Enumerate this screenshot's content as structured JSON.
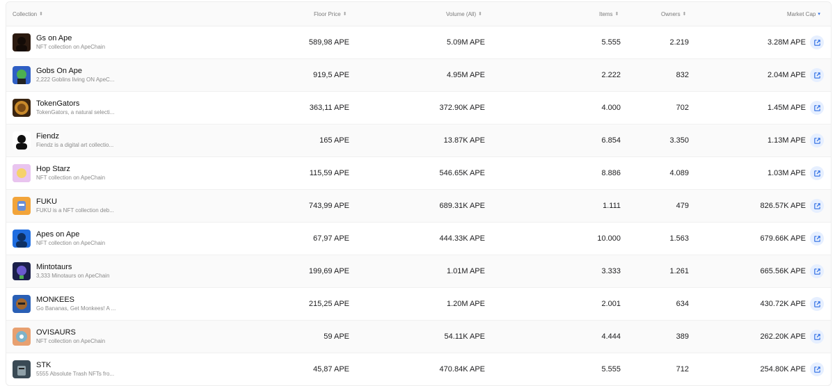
{
  "header": {
    "collection": "Collection",
    "floor_price": "Floor Price",
    "volume": "Volume (All)",
    "items": "Items",
    "owners": "Owners",
    "market_cap": "Market Cap",
    "sort_icon": "sort-icon",
    "active_sort_icon": "sort-desc-icon"
  },
  "colors": {
    "accent": "#2f6fe4",
    "button_bg": "#e6efff",
    "alt_row": "#fafafa"
  },
  "rows": [
    {
      "name": "Gs on Ape",
      "desc": "NFT collection on ApeChain",
      "floor": "589,98 APE",
      "volume": "5.09M APE",
      "items": "5.555",
      "owners": "2.219",
      "cap": "3.28M APE",
      "avatar_color": "#2b1a10",
      "avatar_icon": "hooded-figure-icon"
    },
    {
      "name": "Gobs On Ape",
      "desc": "2,222 Goblins living ON ApeC...",
      "floor": "919,5 APE",
      "volume": "4.95M APE",
      "items": "2.222",
      "owners": "832",
      "cap": "2.04M APE",
      "avatar_color": "#2f5fc4",
      "avatar_icon": "goblin-icon"
    },
    {
      "name": "TokenGators",
      "desc": "TokenGators, a natural selecti...",
      "floor": "363,11 APE",
      "volume": "372.90K APE",
      "items": "4.000",
      "owners": "702",
      "cap": "1.45M APE",
      "avatar_color": "#3a2410",
      "avatar_icon": "gator-badge-icon"
    },
    {
      "name": "Fiendz",
      "desc": "Fiendz is a digital art collectio...",
      "floor": "165 APE",
      "volume": "13.87K APE",
      "items": "6.854",
      "owners": "3.350",
      "cap": "1.13M APE",
      "avatar_color": "#ffffff",
      "avatar_icon": "fiend-silhouette-icon"
    },
    {
      "name": "Hop Starz",
      "desc": "NFT collection on ApeChain",
      "floor": "115,59 APE",
      "volume": "546.65K APE",
      "items": "8.886",
      "owners": "4.089",
      "cap": "1.03M APE",
      "avatar_color": "#c9a6e0",
      "avatar_icon": "hop-starz-icon"
    },
    {
      "name": "FUKU",
      "desc": "FUKU is a NFT collection deb...",
      "floor": "743,99 APE",
      "volume": "689.31K APE",
      "items": "1.111",
      "owners": "479",
      "cap": "826.57K APE",
      "avatar_color": "#f2a43a",
      "avatar_icon": "fuku-character-icon"
    },
    {
      "name": "Apes on Ape",
      "desc": "NFT collection on ApeChain",
      "floor": "67,97 APE",
      "volume": "444.33K APE",
      "items": "10.000",
      "owners": "1.563",
      "cap": "679.66K APE",
      "avatar_color": "#1f6de0",
      "avatar_icon": "ape-silhouette-icon"
    },
    {
      "name": "Mintotaurs",
      "desc": "3,333 Minotaurs on ApeChain",
      "floor": "199,69 APE",
      "volume": "1.01M APE",
      "items": "3.333",
      "owners": "1.261",
      "cap": "665.56K APE",
      "avatar_color": "#1a1f4a",
      "avatar_icon": "minotaur-icon"
    },
    {
      "name": "MONKEES",
      "desc": "Go Bananas, Get Monkees! A ...",
      "floor": "215,25 APE",
      "volume": "1.20M APE",
      "items": "2.001",
      "owners": "634",
      "cap": "430.72K APE",
      "avatar_color": "#2a5fb5",
      "avatar_icon": "monkey-icon"
    },
    {
      "name": "OVISAURS",
      "desc": "NFT collection on ApeChain",
      "floor": "59 APE",
      "volume": "54.11K APE",
      "items": "4.444",
      "owners": "389",
      "cap": "262.20K APE",
      "avatar_color": "#e8a070",
      "avatar_icon": "ovisaur-icon"
    },
    {
      "name": "STK",
      "desc": "5555 Absolute Trash NFTs fro...",
      "floor": "45,87 APE",
      "volume": "470.84K APE",
      "items": "5.555",
      "owners": "712",
      "cap": "254.80K APE",
      "avatar_color": "#3a4a55",
      "avatar_icon": "trash-character-icon"
    }
  ]
}
